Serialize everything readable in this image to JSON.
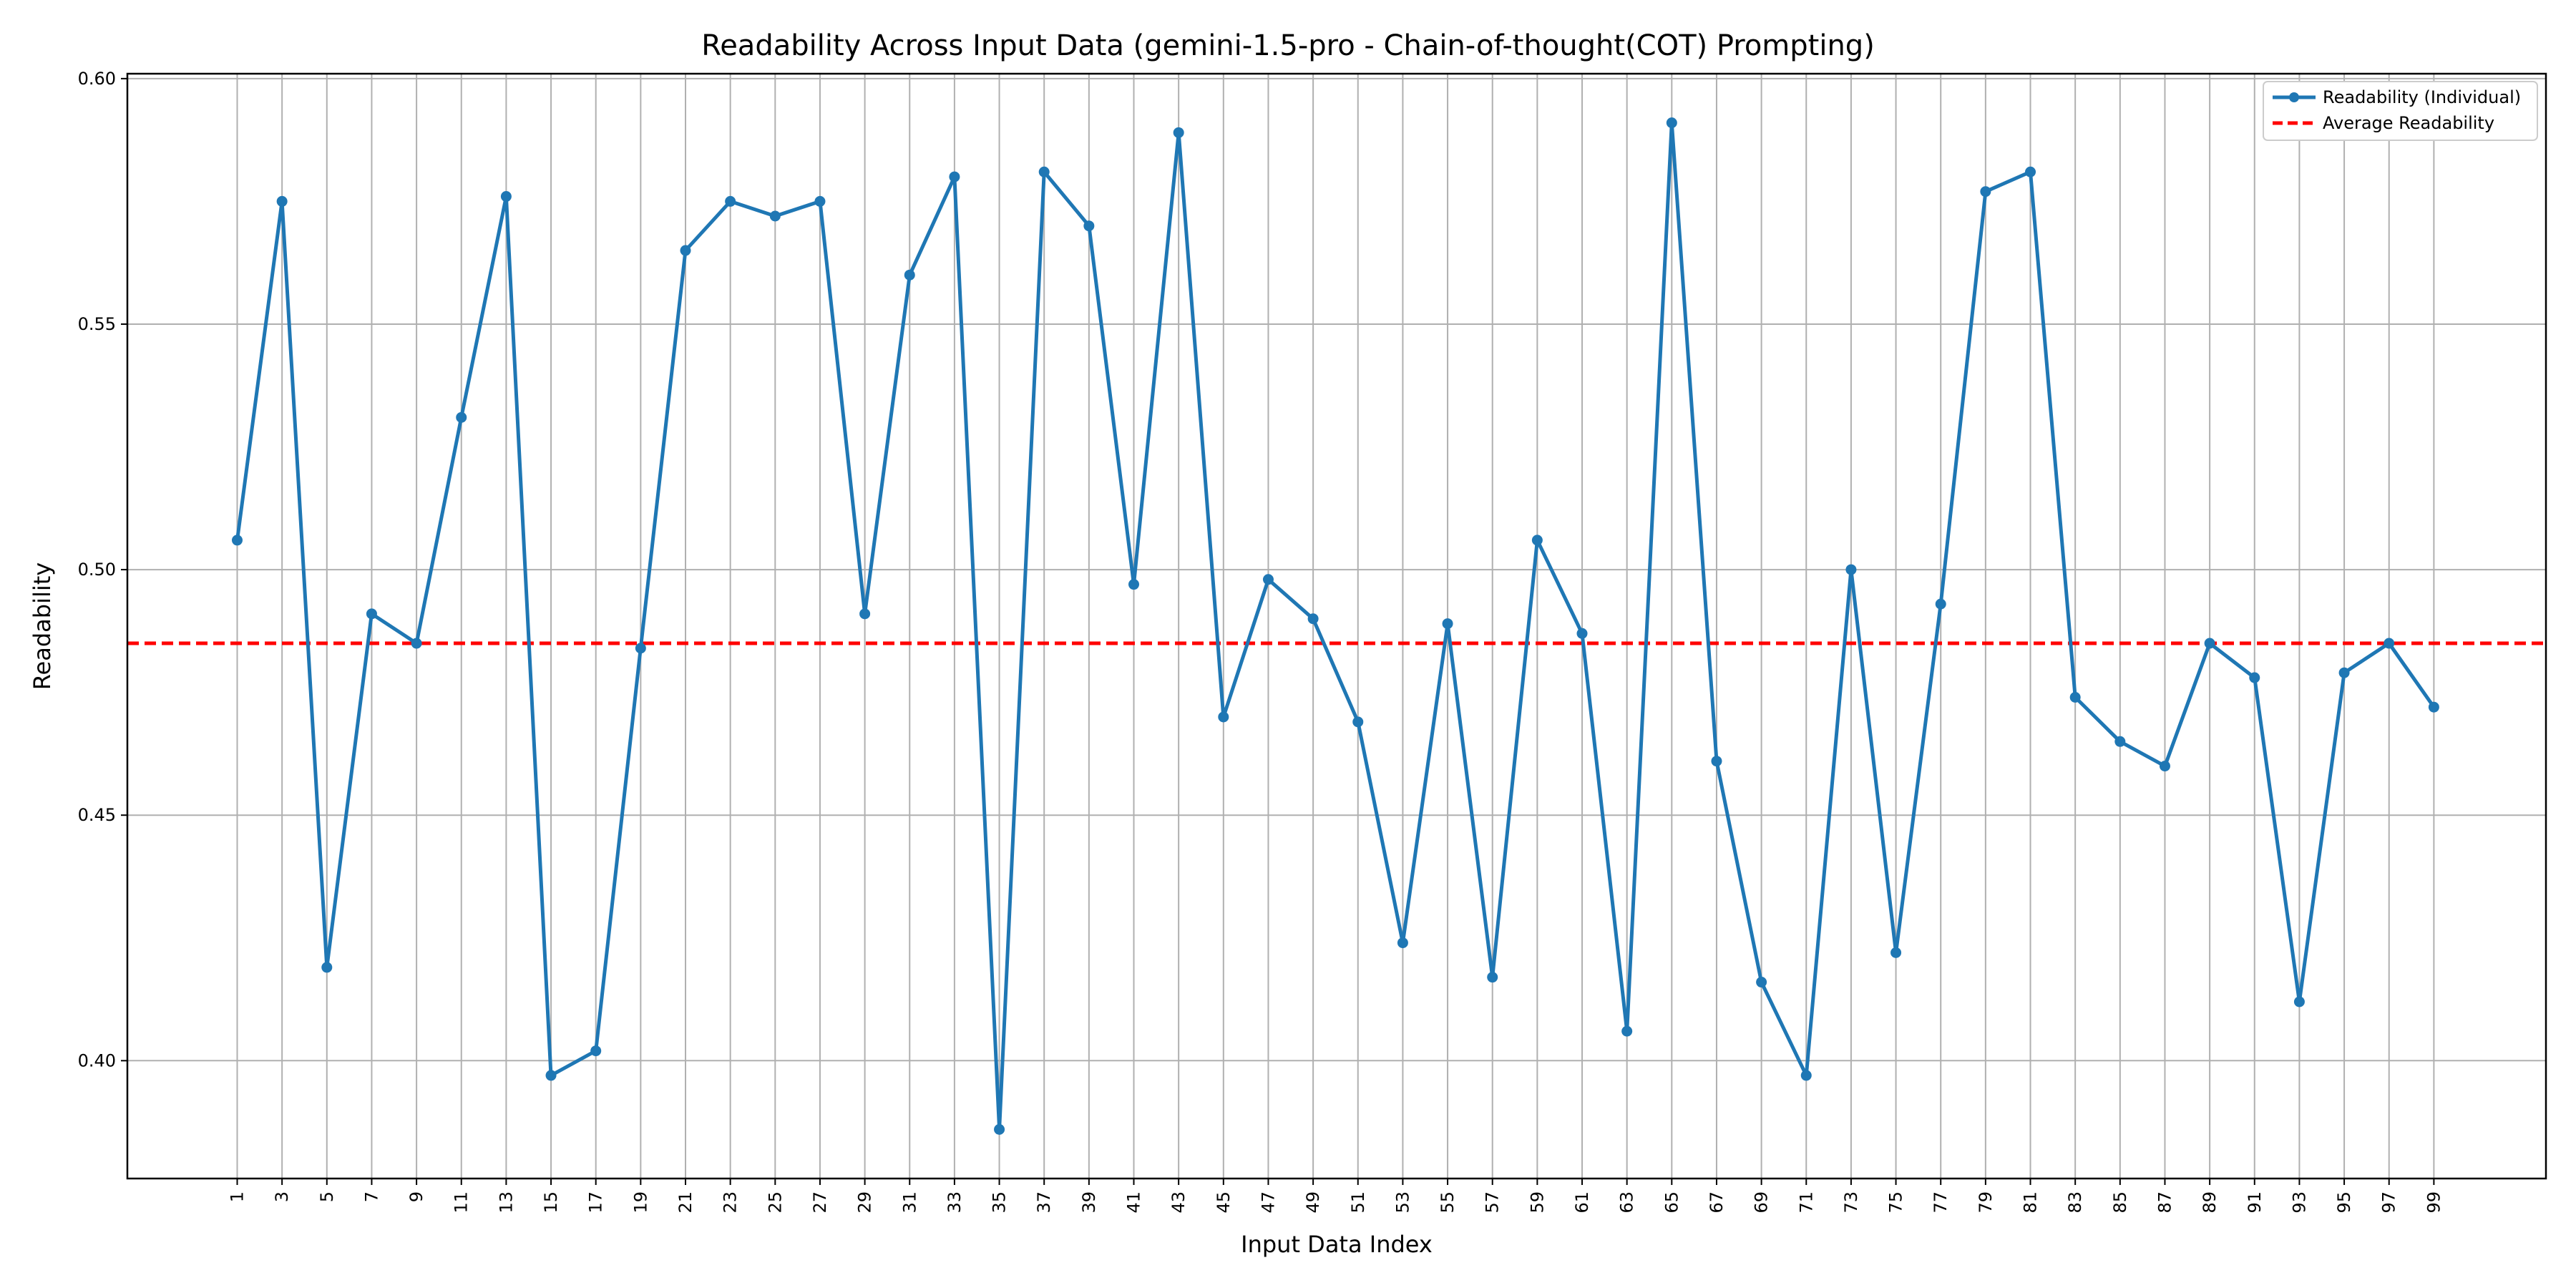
{
  "chart_data": {
    "type": "line",
    "title": "Readability Across Input Data (gemini-1.5-pro - Chain-of-thought(COT) Prompting)",
    "xlabel": "Input Data Index",
    "ylabel": "Readability",
    "x": [
      1,
      3,
      5,
      7,
      9,
      11,
      13,
      15,
      17,
      19,
      21,
      23,
      25,
      27,
      29,
      31,
      33,
      35,
      37,
      39,
      41,
      43,
      45,
      47,
      49,
      51,
      53,
      55,
      57,
      59,
      61,
      63,
      65,
      67,
      69,
      71,
      73,
      75,
      77,
      79,
      81,
      83,
      85,
      87,
      89,
      91,
      93,
      95,
      97,
      99
    ],
    "x_ticks": [
      "1",
      "3",
      "5",
      "7",
      "9",
      "11",
      "13",
      "15",
      "17",
      "19",
      "21",
      "23",
      "25",
      "27",
      "29",
      "31",
      "33",
      "35",
      "37",
      "39",
      "41",
      "43",
      "45",
      "47",
      "49",
      "51",
      "53",
      "55",
      "57",
      "59",
      "61",
      "63",
      "65",
      "67",
      "69",
      "71",
      "73",
      "75",
      "77",
      "79",
      "81",
      "83",
      "85",
      "87",
      "89",
      "91",
      "93",
      "95",
      "97",
      "99"
    ],
    "xlim": [
      -3.9,
      104
    ],
    "ylim": [
      0.376,
      0.601
    ],
    "y_ticks": [
      "0.40",
      "0.45",
      "0.50",
      "0.55",
      "0.60"
    ],
    "y_tick_values": [
      0.4,
      0.45,
      0.5,
      0.55,
      0.6
    ],
    "series": [
      {
        "name": "Readability (Individual)",
        "color": "#1f77b4",
        "values": [
          0.506,
          0.575,
          0.419,
          0.491,
          0.485,
          0.531,
          0.576,
          0.397,
          0.402,
          0.484,
          0.565,
          0.575,
          0.572,
          0.575,
          0.491,
          0.56,
          0.58,
          0.386,
          0.581,
          0.57,
          0.497,
          0.589,
          0.47,
          0.498,
          0.49,
          0.469,
          0.424,
          0.489,
          0.417,
          0.506,
          0.487,
          0.406,
          0.591,
          0.461,
          0.416,
          0.397,
          0.5,
          0.422,
          0.493,
          0.577,
          0.581,
          0.474,
          0.465,
          0.46,
          0.485,
          0.478,
          0.412,
          0.479,
          0.485,
          0.472
        ]
      },
      {
        "name": "Average Readability",
        "color": "#ff0000",
        "style": "dashed",
        "value": 0.485
      }
    ],
    "grid": true,
    "legend_position": "top-right"
  }
}
